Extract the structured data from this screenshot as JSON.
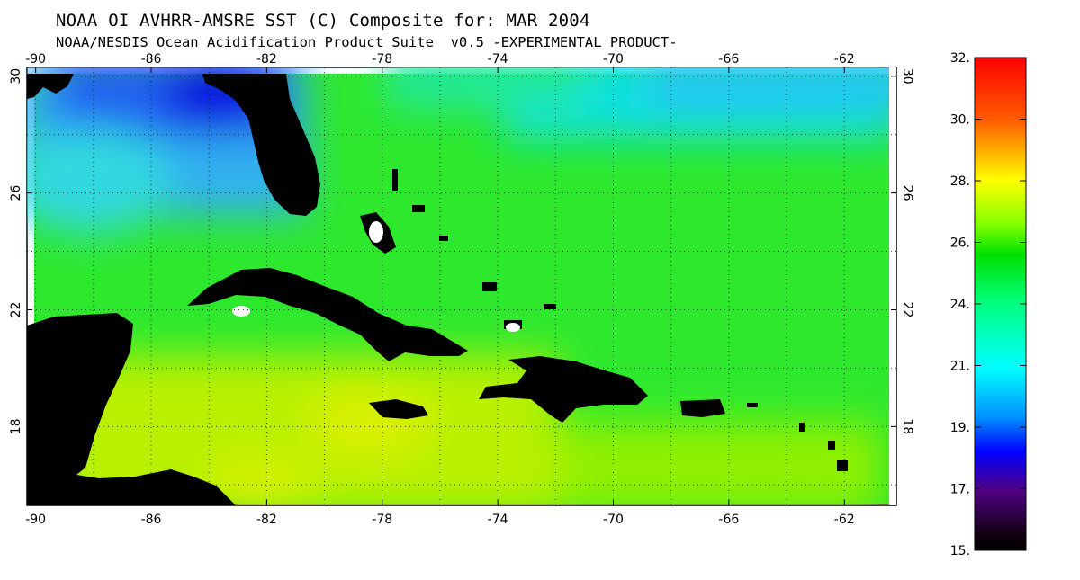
{
  "title": "NOAA OI AVHRR-AMSRE SST (C) Composite for: MAR 2004",
  "subtitle": "NOAA/NESDIS Ocean Acidification Product Suite  v0.5 -EXPERIMENTAL PRODUCT-",
  "map": {
    "region": "Caribbean Sea and western Atlantic",
    "projection": "equirectangular",
    "lon_range": [
      -90.3,
      -60.2
    ],
    "lat_range": [
      15.3,
      30.3
    ],
    "lon_ticks": [
      "-90",
      "-86",
      "-82",
      "-78",
      "-74",
      "-70",
      "-66",
      "-62"
    ],
    "lat_ticks": [
      "30",
      "26",
      "22",
      "18"
    ],
    "grid": "dotted, every 2 degrees",
    "land_color": "#000000",
    "no_data_color": "#ffffff"
  },
  "colorbar": {
    "orientation": "vertical",
    "labels": [
      "32.",
      "30.",
      "28.",
      "26.",
      "24.",
      "21.",
      "19.",
      "17.",
      "15."
    ],
    "colors": [
      "#ff0000",
      "#ff8000",
      "#ffff00",
      "#00ff00",
      "#00ffff",
      "#0080ff",
      "#0000ff",
      "#400080",
      "#000000"
    ]
  }
}
